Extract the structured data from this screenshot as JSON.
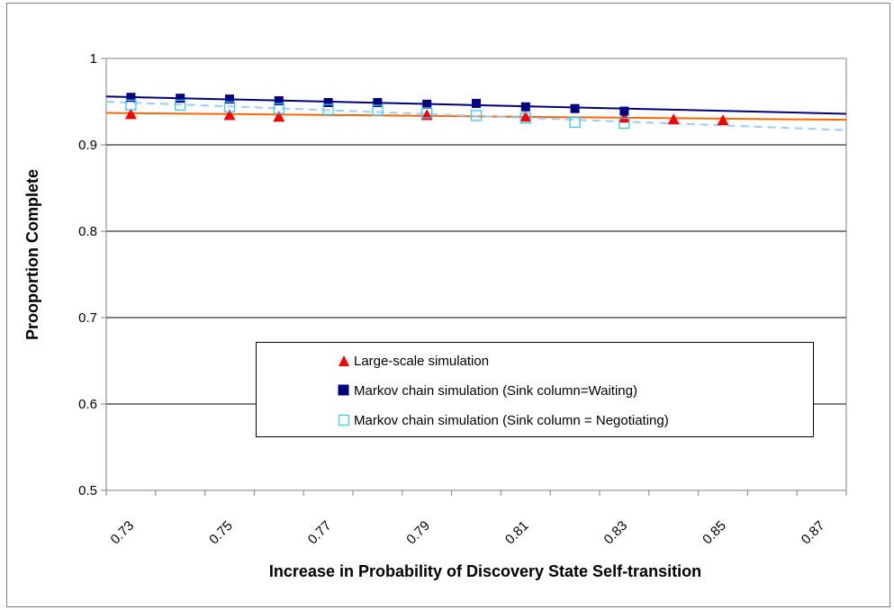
{
  "chart_data": {
    "type": "scatter",
    "title": "",
    "xlabel": "Increase in Probability of Discovery State Self-transition",
    "ylabel": "Prooportion Complete",
    "xlim": [
      0.725,
      0.875
    ],
    "ylim": [
      0.5,
      1.0
    ],
    "x_ticks": [
      "0.73",
      "0.75",
      "0.77",
      "0.79",
      "0.81",
      "0.83",
      "0.85",
      "0.87"
    ],
    "y_ticks": [
      "0.5",
      "0.6",
      "0.7",
      "0.8",
      "0.9",
      "1"
    ],
    "grid": "horizontal",
    "legend_position": "center",
    "series": [
      {
        "name": "Large-scale simulation",
        "marker": "triangle",
        "color": "#ff0000",
        "x": [
          0.73,
          0.75,
          0.76,
          0.79,
          0.81,
          0.83,
          0.84,
          0.85
        ],
        "y": [
          0.935,
          0.934,
          0.932,
          0.934,
          0.932,
          0.931,
          0.929,
          0.928
        ],
        "trendline": {
          "color": "#ff6600",
          "style": "solid",
          "y_start": 0.937,
          "y_end": 0.929
        }
      },
      {
        "name": "Markov chain simulation (Sink column=Waiting)",
        "marker": "filled-square",
        "color": "#000080",
        "x": [
          0.73,
          0.74,
          0.75,
          0.76,
          0.77,
          0.78,
          0.79,
          0.8,
          0.81,
          0.82,
          0.83
        ],
        "y": [
          0.955,
          0.954,
          0.953,
          0.951,
          0.949,
          0.949,
          0.947,
          0.948,
          0.944,
          0.942,
          0.939
        ],
        "trendline": {
          "color": "#000080",
          "style": "solid",
          "y_start": 0.956,
          "y_end": 0.936
        }
      },
      {
        "name": "Markov chain simulation (Sink column = Negotiating)",
        "marker": "open-square",
        "color": "#33ccff",
        "x": [
          0.73,
          0.74,
          0.75,
          0.76,
          0.77,
          0.78,
          0.79,
          0.8,
          0.81,
          0.82,
          0.83
        ],
        "y": [
          0.946,
          0.946,
          0.944,
          0.942,
          0.941,
          0.94,
          0.937,
          0.934,
          0.931,
          0.926,
          0.925
        ],
        "trendline": {
          "color": "#99ccff",
          "style": "dashed",
          "y_start": 0.95,
          "y_end": 0.917
        }
      }
    ]
  }
}
